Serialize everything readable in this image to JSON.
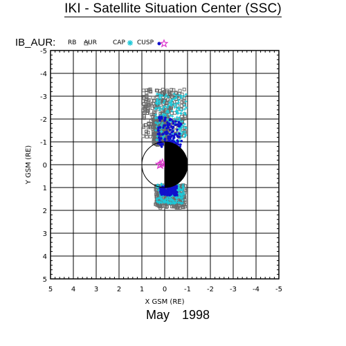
{
  "page": {
    "title": "IKI - Satellite Situation Center (SSC)",
    "month": "May",
    "year": "1998"
  },
  "chart_data": {
    "type": "scatter",
    "panel_label": "IB_AUR:",
    "xlabel": "X GSM (RE)",
    "ylabel": "Y GSM (RE)",
    "xlim": [
      5,
      -5
    ],
    "ylim": [
      -5,
      5
    ],
    "x_ticks": [
      "5",
      "4",
      "3",
      "2",
      "1",
      "0",
      "-1",
      "-2",
      "-3",
      "-4",
      "-5"
    ],
    "y_ticks": [
      "-5",
      "-4",
      "-3",
      "-2",
      "-1",
      "0",
      "1",
      "2",
      "3",
      "4",
      "5"
    ],
    "grid": true,
    "legend": [
      {
        "label": "RB",
        "marker": "none",
        "color": "#000000"
      },
      {
        "label": "AUR",
        "marker": "square",
        "color": "#6b6b6b"
      },
      {
        "label": "CAP",
        "marker": "asterisk",
        "color": "#1ec8d8"
      },
      {
        "label": "CUSP",
        "marker": "dot",
        "color": "#1010cc"
      },
      {
        "label": "",
        "marker": "star",
        "color": "#dd33cc"
      }
    ],
    "earth": {
      "center": [
        0,
        0
      ],
      "radius": 1,
      "night_side": "x<0"
    },
    "series": [
      {
        "name": "AUR",
        "color": "#6b6b6b",
        "regions": [
          {
            "x": [
              0.95,
              -0.95
            ],
            "y": [
              -3.3,
              -1.2
            ]
          },
          {
            "x": [
              0.5,
              -0.15
            ],
            "y": [
              -2.05,
              -0.85
            ]
          },
          {
            "x": [
              0.4,
              -0.9
            ],
            "y": [
              0.9,
              1.9
            ]
          }
        ]
      },
      {
        "name": "CAP",
        "color": "#1ec8d8",
        "regions": [
          {
            "x": [
              0.4,
              -0.95
            ],
            "y": [
              -3.1,
              -1.0
            ]
          },
          {
            "x": [
              0.35,
              -0.85
            ],
            "y": [
              0.85,
              1.7
            ]
          }
        ]
      },
      {
        "name": "CUSP",
        "color": "#1010cc",
        "regions": [
          {
            "x": [
              0.3,
              -0.75
            ],
            "y": [
              -2.1,
              -0.75
            ]
          },
          {
            "x": [
              0.2,
              -0.55
            ],
            "y": [
              0.9,
              1.35
            ]
          }
        ]
      },
      {
        "name": "",
        "color": "#dd33cc",
        "points": [
          [
            0.2,
            0.0
          ],
          [
            0.1,
            -0.05
          ]
        ]
      }
    ]
  }
}
